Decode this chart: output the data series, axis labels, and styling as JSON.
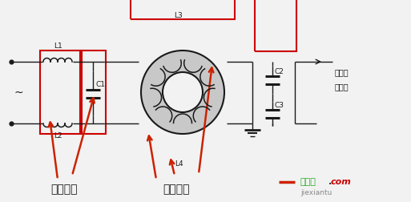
{
  "bg_color": "#f2f2f2",
  "line_color": "#1a1a1a",
  "red_box_color": "#cc0000",
  "arrow_color": "#cc2200",
  "label_zh_diff": "差模电感",
  "label_zh_common": "共模电感",
  "label_L1": "L1",
  "label_L2": "L2",
  "label_L3": "L3",
  "label_L4": "L4",
  "label_C1": "C1",
  "label_C2": "C2",
  "label_C3": "C3",
  "label_right1": "去整流",
  "label_right2": "二极管",
  "watermark_green": "接线图",
  "watermark_dot": ".",
  "watermark_red": "com",
  "watermark_gray": "jiexiantu"
}
